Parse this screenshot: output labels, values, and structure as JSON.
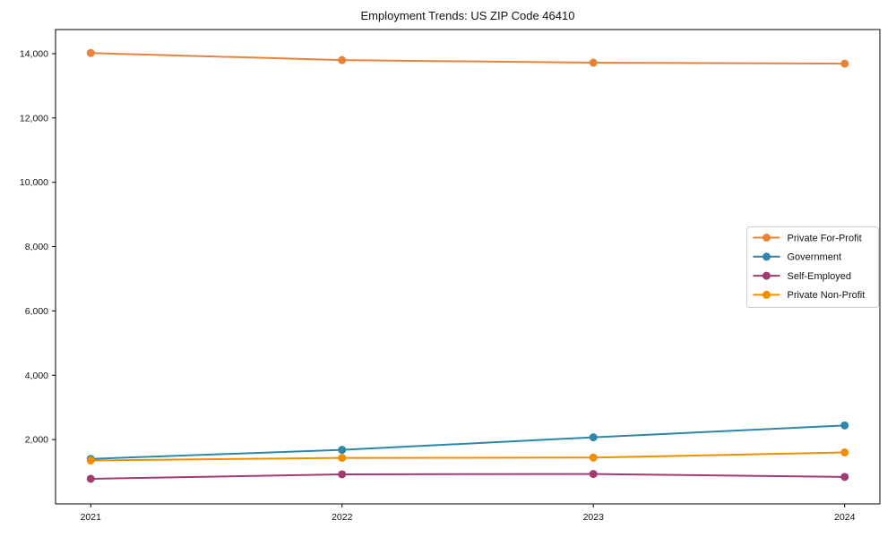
{
  "figure": {
    "title": "Employment Trends: US ZIP Code 46410"
  },
  "chart_data": {
    "type": "line",
    "title": "Employment Trends: US ZIP Code 46410",
    "xlabel": "",
    "ylabel": "",
    "x": [
      2021,
      2022,
      2023,
      2024
    ],
    "x_tick_labels": [
      "2021",
      "2022",
      "2023",
      "2024"
    ],
    "series": [
      {
        "name": "Private For-Profit",
        "color": "#E8833A",
        "values": [
          14020,
          13800,
          13720,
          13690
        ]
      },
      {
        "name": "Government",
        "color": "#2E86AB",
        "values": [
          1400,
          1680,
          2070,
          2440
        ]
      },
      {
        "name": "Self-Employed",
        "color": "#A23B72",
        "values": [
          780,
          920,
          930,
          840
        ]
      },
      {
        "name": "Private Non-Profit",
        "color": "#F18F01",
        "values": [
          1350,
          1430,
          1440,
          1600
        ]
      }
    ],
    "yticks": [
      {
        "value": 2000,
        "label": "2,000"
      },
      {
        "value": 4000,
        "label": "4,000"
      },
      {
        "value": 6000,
        "label": "6,000"
      },
      {
        "value": 8000,
        "label": "8,000"
      },
      {
        "value": 10000,
        "label": "10,000"
      },
      {
        "value": 12000,
        "label": "12,000"
      },
      {
        "value": 14000,
        "label": "14,000"
      }
    ],
    "xlim": [
      2020.86,
      2024.14
    ],
    "ylim": [
      0,
      14750
    ],
    "grid": false,
    "legend": {
      "position": "center right",
      "entries": [
        "Private For-Profit",
        "Government",
        "Self-Employed",
        "Private Non-Profit"
      ]
    }
  }
}
